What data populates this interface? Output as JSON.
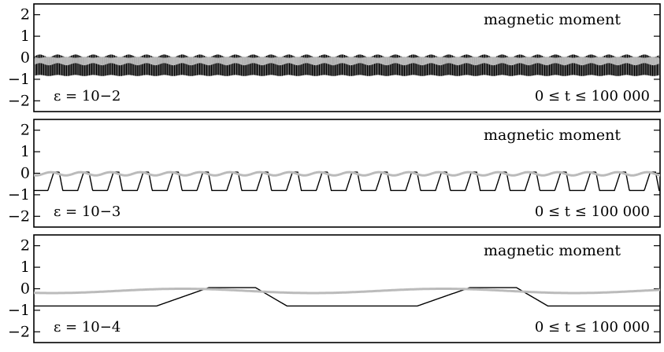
{
  "chart_data": [
    {
      "type": "line",
      "title": "magnetic moment",
      "epsilon_label": "ε = 10−2",
      "time_range_label": "0 ≤ t ≤ 100 000",
      "epsilon": 0.01,
      "xlim": [
        0,
        100000
      ],
      "ylim": [
        -2.5,
        2.5
      ],
      "yticks": [
        -2,
        -1,
        0,
        1,
        2
      ],
      "ytick_labels": [
        "−2",
        "−1",
        "0",
        "1",
        "2"
      ],
      "series": [
        {
          "color": "#000000",
          "band": [
            -0.85,
            0.15
          ],
          "fast": true
        },
        {
          "color": "#bbbbbb",
          "band": [
            -0.35,
            0.05
          ],
          "fast": true
        }
      ]
    },
    {
      "type": "line",
      "title": "magnetic moment",
      "epsilon_label": "ε = 10−3",
      "time_range_label": "0 ≤ t ≤ 100 000",
      "epsilon": 0.001,
      "xlim": [
        0,
        100000
      ],
      "ylim": [
        -2.5,
        2.5
      ],
      "yticks": [
        -2,
        -1,
        0,
        1,
        2
      ],
      "ytick_labels": [
        "−2",
        "−1",
        "0",
        "1",
        "2"
      ],
      "series": [
        {
          "color": "#000000",
          "min": -0.8,
          "max": 0.05,
          "periods": 21,
          "shape": "well"
        },
        {
          "color": "#bbbbbb",
          "min": -0.1,
          "max": 0.05,
          "periods": 21,
          "shape": "smooth"
        }
      ]
    },
    {
      "type": "line",
      "title": "magnetic moment",
      "epsilon_label": "ε = 10−4",
      "time_range_label": "0 ≤ t ≤ 100 000",
      "epsilon": 0.0001,
      "xlim": [
        0,
        100000
      ],
      "ylim": [
        -2.5,
        2.5
      ],
      "yticks": [
        -2,
        -1,
        0,
        1,
        2
      ],
      "ytick_labels": [
        "−2",
        "−1",
        "0",
        "1",
        "2"
      ],
      "series": [
        {
          "color": "#000000",
          "min": -0.8,
          "max": 0.05,
          "periods": 2.4,
          "shape": "well"
        },
        {
          "color": "#bbbbbb",
          "min": -0.2,
          "max": 0.0,
          "periods": 2.4,
          "shape": "smooth"
        }
      ]
    }
  ]
}
